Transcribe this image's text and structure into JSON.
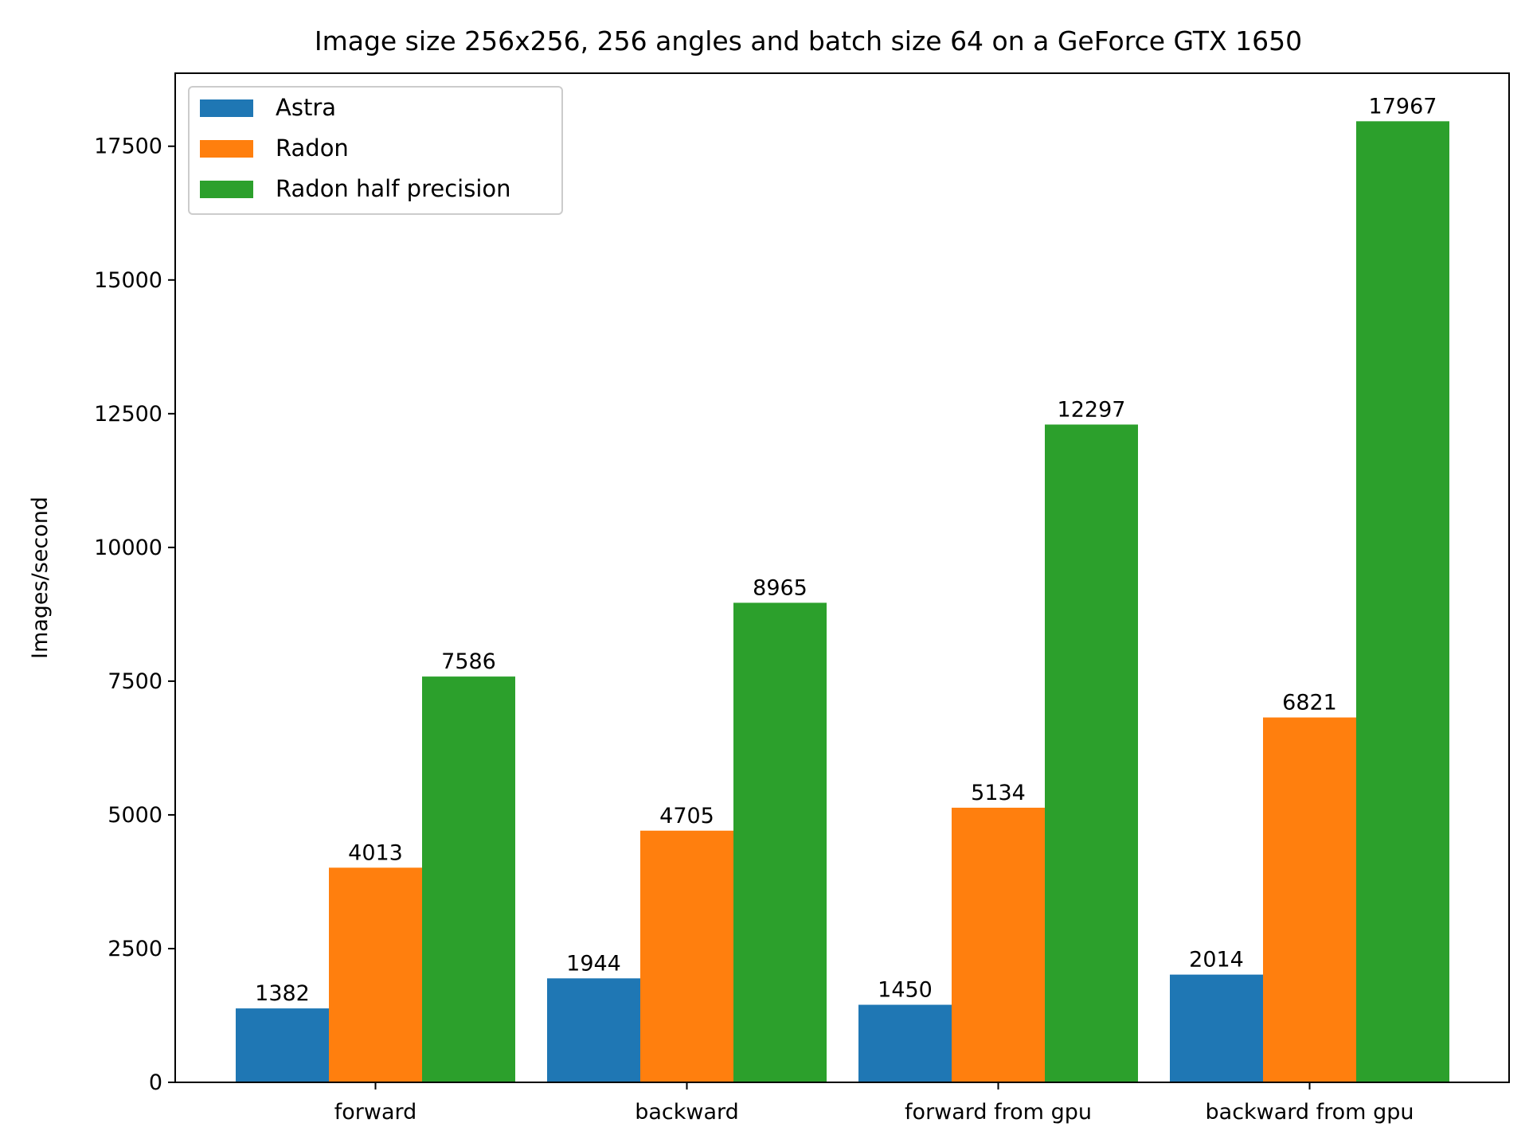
{
  "chart_data": {
    "type": "bar",
    "title": "Image size 256x256, 256 angles and batch size 64 on a GeForce GTX 1650",
    "xlabel": "",
    "ylabel": "Images/second",
    "categories": [
      "forward",
      "backward",
      "forward from gpu",
      "backward from gpu"
    ],
    "series": [
      {
        "name": "Astra",
        "color": "#1f77b4",
        "values": [
          1382,
          1944,
          1450,
          2014
        ]
      },
      {
        "name": "Radon",
        "color": "#ff7f0e",
        "values": [
          4013,
          4705,
          5134,
          6821
        ]
      },
      {
        "name": "Radon half precision",
        "color": "#2ca02c",
        "values": [
          7586,
          8965,
          12297,
          17967
        ]
      }
    ],
    "ylim": [
      0,
      18865
    ],
    "yticks": [
      0,
      2500,
      5000,
      7500,
      10000,
      12500,
      15000,
      17500
    ],
    "ytick_labels": [
      "0",
      "2500",
      "5000",
      "7500",
      "10000",
      "12500",
      "15000",
      "17500"
    ],
    "legend_position": "top-left",
    "grid": false
  }
}
